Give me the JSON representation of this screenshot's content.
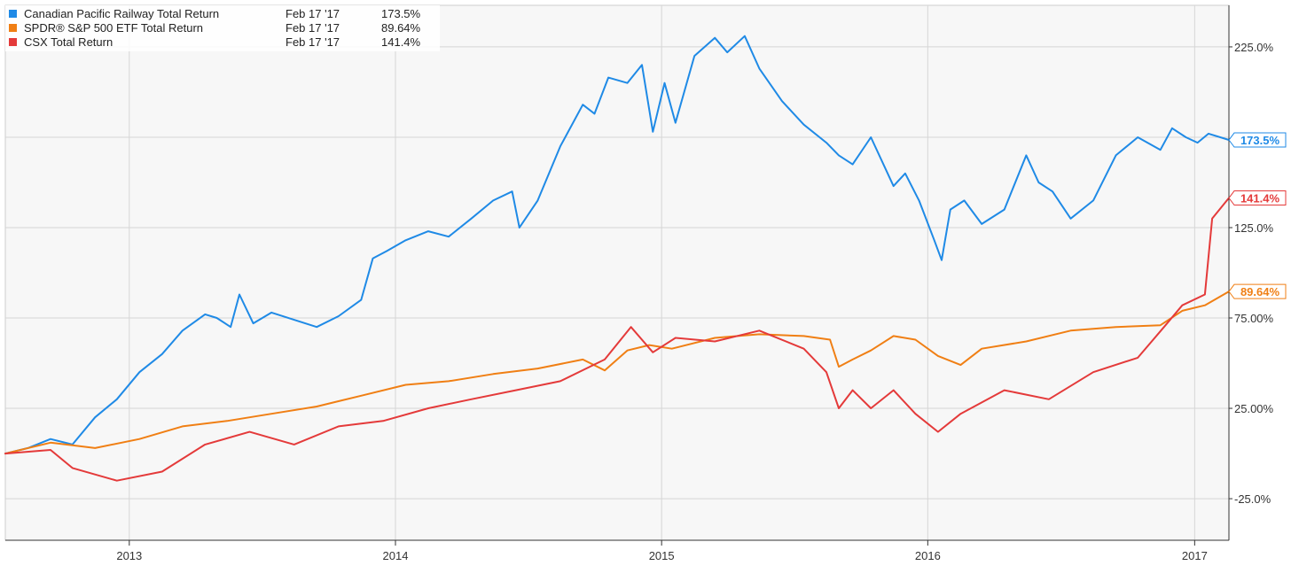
{
  "chart_data": {
    "type": "line",
    "title": "",
    "xlabel": "",
    "ylabel": "",
    "x_range": [
      "2012-07-15",
      "2017-02-17"
    ],
    "ylim": [
      -48,
      248
    ],
    "y_ticks": [
      -25,
      25,
      75,
      125,
      225
    ],
    "y_tick_labels": [
      "-25.0%",
      "25.00%",
      "75.00%",
      "125.0%",
      "225.0%"
    ],
    "y_grid_values": [
      -25,
      25,
      75,
      125,
      175,
      225
    ],
    "x_ticks": [
      "2013-01-01",
      "2014-01-01",
      "2015-01-01",
      "2016-01-01",
      "2017-01-01"
    ],
    "x_tick_labels": [
      "2013",
      "2014",
      "2015",
      "2016",
      "2017"
    ],
    "grid": true,
    "legend_position": "top-left",
    "series": [
      {
        "name": "Canadian Pacific Railway Total Return",
        "date_label": "Feb 17 '17",
        "value_label": "173.5%",
        "end_label": "173.5%",
        "color": "#1f8ae6",
        "points": [
          [
            "2012-07-15",
            0
          ],
          [
            "2012-08-15",
            3
          ],
          [
            "2012-09-15",
            8
          ],
          [
            "2012-10-15",
            5
          ],
          [
            "2012-11-15",
            20
          ],
          [
            "2012-12-15",
            30
          ],
          [
            "2013-01-15",
            45
          ],
          [
            "2013-02-15",
            55
          ],
          [
            "2013-03-15",
            68
          ],
          [
            "2013-04-15",
            77
          ],
          [
            "2013-05-01",
            75
          ],
          [
            "2013-05-20",
            70
          ],
          [
            "2013-06-01",
            88
          ],
          [
            "2013-06-20",
            72
          ],
          [
            "2013-07-15",
            78
          ],
          [
            "2013-08-15",
            74
          ],
          [
            "2013-09-15",
            70
          ],
          [
            "2013-10-15",
            76
          ],
          [
            "2013-11-15",
            85
          ],
          [
            "2013-12-01",
            108
          ],
          [
            "2013-12-20",
            112
          ],
          [
            "2014-01-15",
            118
          ],
          [
            "2014-02-15",
            123
          ],
          [
            "2014-03-15",
            120
          ],
          [
            "2014-04-15",
            130
          ],
          [
            "2014-05-15",
            140
          ],
          [
            "2014-06-10",
            145
          ],
          [
            "2014-06-20",
            125
          ],
          [
            "2014-07-15",
            140
          ],
          [
            "2014-08-15",
            170
          ],
          [
            "2014-09-15",
            193
          ],
          [
            "2014-10-01",
            188
          ],
          [
            "2014-10-20",
            208
          ],
          [
            "2014-11-15",
            205
          ],
          [
            "2014-12-05",
            215
          ],
          [
            "2014-12-20",
            178
          ],
          [
            "2015-01-05",
            205
          ],
          [
            "2015-01-20",
            183
          ],
          [
            "2015-02-15",
            220
          ],
          [
            "2015-03-15",
            230
          ],
          [
            "2015-04-01",
            222
          ],
          [
            "2015-04-25",
            231
          ],
          [
            "2015-05-15",
            213
          ],
          [
            "2015-06-15",
            195
          ],
          [
            "2015-07-15",
            182
          ],
          [
            "2015-08-15",
            172
          ],
          [
            "2015-09-01",
            165
          ],
          [
            "2015-09-20",
            160
          ],
          [
            "2015-10-15",
            175
          ],
          [
            "2015-11-15",
            148
          ],
          [
            "2015-12-01",
            155
          ],
          [
            "2015-12-20",
            140
          ],
          [
            "2016-01-10",
            118
          ],
          [
            "2016-01-20",
            107
          ],
          [
            "2016-02-01",
            135
          ],
          [
            "2016-02-20",
            140
          ],
          [
            "2016-03-15",
            127
          ],
          [
            "2016-04-15",
            135
          ],
          [
            "2016-05-15",
            165
          ],
          [
            "2016-06-01",
            150
          ],
          [
            "2016-06-20",
            145
          ],
          [
            "2016-07-15",
            130
          ],
          [
            "2016-08-15",
            140
          ],
          [
            "2016-09-15",
            165
          ],
          [
            "2016-10-15",
            175
          ],
          [
            "2016-11-15",
            168
          ],
          [
            "2016-12-01",
            180
          ],
          [
            "2016-12-20",
            175
          ],
          [
            "2017-01-05",
            172
          ],
          [
            "2017-01-20",
            177
          ],
          [
            "2017-02-17",
            173.5
          ]
        ]
      },
      {
        "name": "SPDR® S&P 500 ETF Total Return",
        "date_label": "Feb 17 '17",
        "value_label": "89.64%",
        "end_label": "89.64%",
        "color": "#f07f14",
        "points": [
          [
            "2012-07-15",
            0
          ],
          [
            "2012-09-15",
            6
          ],
          [
            "2012-11-15",
            3
          ],
          [
            "2013-01-15",
            8
          ],
          [
            "2013-03-15",
            15
          ],
          [
            "2013-05-15",
            18
          ],
          [
            "2013-07-15",
            22
          ],
          [
            "2013-09-15",
            26
          ],
          [
            "2013-11-15",
            32
          ],
          [
            "2014-01-15",
            38
          ],
          [
            "2014-03-15",
            40
          ],
          [
            "2014-05-15",
            44
          ],
          [
            "2014-07-15",
            47
          ],
          [
            "2014-09-15",
            52
          ],
          [
            "2014-10-15",
            46
          ],
          [
            "2014-11-15",
            57
          ],
          [
            "2014-12-15",
            60
          ],
          [
            "2015-01-15",
            58
          ],
          [
            "2015-03-15",
            64
          ],
          [
            "2015-05-15",
            66
          ],
          [
            "2015-07-15",
            65
          ],
          [
            "2015-08-20",
            63
          ],
          [
            "2015-09-01",
            48
          ],
          [
            "2015-09-20",
            52
          ],
          [
            "2015-10-15",
            57
          ],
          [
            "2015-11-15",
            65
          ],
          [
            "2015-12-15",
            63
          ],
          [
            "2016-01-15",
            54
          ],
          [
            "2016-02-15",
            49
          ],
          [
            "2016-03-15",
            58
          ],
          [
            "2016-05-15",
            62
          ],
          [
            "2016-07-15",
            68
          ],
          [
            "2016-09-15",
            70
          ],
          [
            "2016-11-15",
            71
          ],
          [
            "2016-12-15",
            79
          ],
          [
            "2017-01-15",
            82
          ],
          [
            "2017-02-17",
            89.64
          ]
        ]
      },
      {
        "name": "CSX Total Return",
        "date_label": "Feb 17 '17",
        "value_label": "141.4%",
        "end_label": "141.4%",
        "color": "#e43a3a",
        "points": [
          [
            "2012-07-15",
            0
          ],
          [
            "2012-09-15",
            2
          ],
          [
            "2012-10-15",
            -8
          ],
          [
            "2012-12-15",
            -15
          ],
          [
            "2013-02-15",
            -10
          ],
          [
            "2013-04-15",
            5
          ],
          [
            "2013-06-15",
            12
          ],
          [
            "2013-08-15",
            5
          ],
          [
            "2013-10-15",
            15
          ],
          [
            "2013-12-15",
            18
          ],
          [
            "2014-02-15",
            25
          ],
          [
            "2014-04-15",
            30
          ],
          [
            "2014-06-15",
            35
          ],
          [
            "2014-08-15",
            40
          ],
          [
            "2014-10-15",
            52
          ],
          [
            "2014-11-20",
            70
          ],
          [
            "2014-12-20",
            56
          ],
          [
            "2015-01-20",
            64
          ],
          [
            "2015-03-15",
            62
          ],
          [
            "2015-05-15",
            68
          ],
          [
            "2015-07-15",
            58
          ],
          [
            "2015-08-15",
            45
          ],
          [
            "2015-09-01",
            25
          ],
          [
            "2015-09-20",
            35
          ],
          [
            "2015-10-15",
            25
          ],
          [
            "2015-11-15",
            35
          ],
          [
            "2015-12-15",
            22
          ],
          [
            "2016-01-15",
            12
          ],
          [
            "2016-02-15",
            22
          ],
          [
            "2016-04-15",
            35
          ],
          [
            "2016-06-15",
            30
          ],
          [
            "2016-08-15",
            45
          ],
          [
            "2016-10-15",
            53
          ],
          [
            "2016-11-20",
            70
          ],
          [
            "2016-12-15",
            82
          ],
          [
            "2017-01-15",
            88
          ],
          [
            "2017-01-25",
            130
          ],
          [
            "2017-02-17",
            141.4
          ]
        ]
      }
    ]
  }
}
